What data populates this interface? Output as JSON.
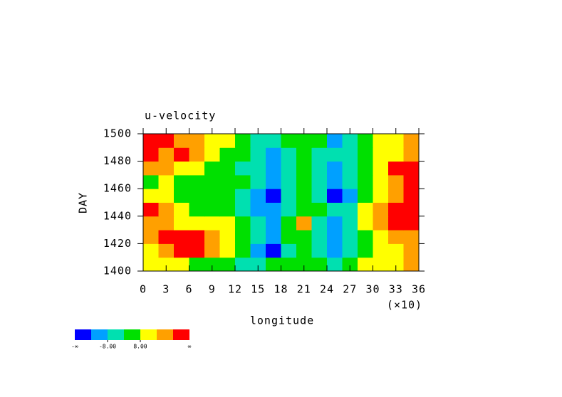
{
  "chart_data": {
    "type": "heatmap",
    "title": "u-velocity",
    "x_label": "longitude",
    "x_scale_label": "(×10)",
    "y_label": "DAY",
    "xlim": [
      0,
      36
    ],
    "xticks": [
      0,
      3,
      6,
      9,
      12,
      15,
      18,
      21,
      24,
      27,
      30,
      33,
      36
    ],
    "ylim": [
      1400,
      1500
    ],
    "yticks": [
      1400,
      1420,
      1440,
      1460,
      1480,
      1500
    ],
    "x_bins": [
      0,
      2,
      4,
      6,
      8,
      10,
      12,
      14,
      16,
      18,
      20,
      22,
      24,
      26,
      28,
      30,
      32,
      34,
      36
    ],
    "y_bins": [
      1400,
      1410,
      1420,
      1430,
      1440,
      1450,
      1460,
      1470,
      1480,
      1490,
      1500
    ],
    "z": [
      [
        10,
        12,
        9,
        6,
        4,
        2,
        -2,
        -6,
        0,
        3,
        5,
        2,
        -4,
        4,
        8,
        10,
        14,
        18
      ],
      [
        14,
        20,
        26,
        28,
        18,
        10,
        2,
        -10,
        -18,
        -4,
        2,
        -2,
        -10,
        -2,
        4,
        8,
        12,
        16
      ],
      [
        18,
        26,
        30,
        26,
        16,
        8,
        0,
        -6,
        -12,
        2,
        6,
        -4,
        -14,
        -6,
        6,
        12,
        18,
        22
      ],
      [
        20,
        16,
        12,
        10,
        8,
        14,
        6,
        -8,
        -10,
        4,
        16,
        -2,
        -12,
        -4,
        10,
        18,
        24,
        26
      ],
      [
        26,
        18,
        10,
        6,
        4,
        2,
        -2,
        -10,
        -12,
        -4,
        6,
        0,
        -8,
        -2,
        8,
        16,
        26,
        30
      ],
      [
        12,
        8,
        4,
        2,
        0,
        4,
        -4,
        -12,
        -18,
        -8,
        2,
        -4,
        -18,
        -10,
        4,
        14,
        22,
        28
      ],
      [
        6,
        10,
        4,
        0,
        2,
        6,
        0,
        -6,
        -12,
        -2,
        4,
        -2,
        -14,
        -8,
        6,
        12,
        20,
        26
      ],
      [
        22,
        18,
        14,
        8,
        4,
        2,
        -4,
        -8,
        -16,
        -6,
        0,
        -4,
        -10,
        -4,
        6,
        14,
        26,
        30
      ],
      [
        26,
        22,
        24,
        16,
        10,
        6,
        0,
        -6,
        -10,
        -2,
        4,
        -2,
        -8,
        -2,
        4,
        8,
        14,
        22
      ],
      [
        30,
        24,
        20,
        16,
        12,
        8,
        2,
        -4,
        -8,
        0,
        6,
        0,
        -12,
        -2,
        6,
        8,
        10,
        18
      ]
    ],
    "levels": [
      -16,
      -8,
      0,
      8,
      16,
      24
    ],
    "colors": [
      "#0000ff",
      "#00a0ff",
      "#00e0b0",
      "#00e000",
      "#ffff00",
      "#ffa000",
      "#ff0000"
    ],
    "level_labels": [
      {
        "value": -8,
        "label": "-8.00"
      },
      {
        "value": 8,
        "label": "8.00"
      }
    ],
    "end_labels": [
      "-∞",
      "∞"
    ]
  }
}
